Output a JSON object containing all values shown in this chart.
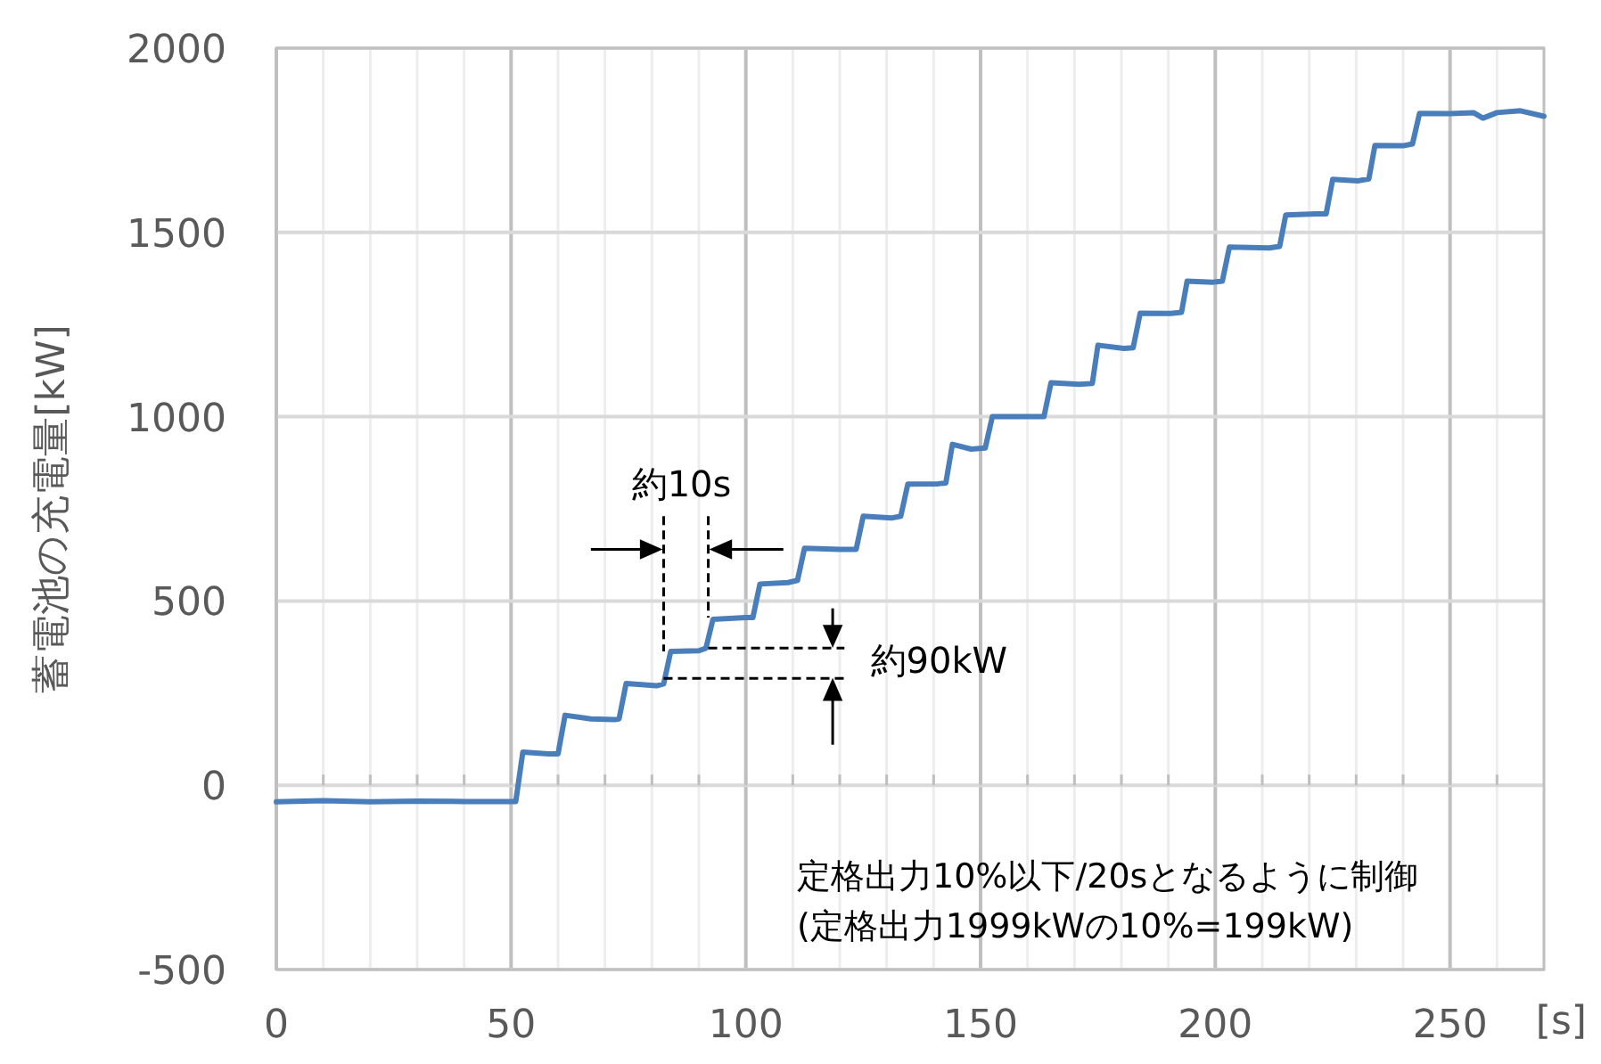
{
  "chart_data": {
    "type": "line",
    "xlabel": "[s]",
    "ylabel": "蓄電池の充電量[kW]",
    "xlim": [
      0,
      270
    ],
    "ylim": [
      -500,
      2000
    ],
    "xticks": [
      0,
      {
        "value": 10,
        "label": null
      },
      {
        "value": 20,
        "label": null
      },
      {
        "value": 30,
        "label": null
      },
      {
        "value": 40,
        "label": null
      },
      50,
      {
        "value": 60,
        "label": null
      },
      {
        "value": 70,
        "label": null
      },
      {
        "value": 80,
        "label": null
      },
      {
        "value": 90,
        "label": null
      },
      100,
      {
        "value": 110,
        "label": null
      },
      {
        "value": 120,
        "label": null
      },
      {
        "value": 130,
        "label": null
      },
      {
        "value": 140,
        "label": null
      },
      150,
      {
        "value": 160,
        "label": null
      },
      {
        "value": 170,
        "label": null
      },
      {
        "value": 180,
        "label": null
      },
      {
        "value": 190,
        "label": null
      },
      200,
      {
        "value": 210,
        "label": null
      },
      {
        "value": 220,
        "label": null
      },
      {
        "value": 230,
        "label": null
      },
      {
        "value": 240,
        "label": null
      },
      250,
      {
        "value": 260,
        "label": null
      }
    ],
    "yticks": [
      -500,
      0,
      500,
      1000,
      1500,
      2000
    ],
    "grid": true,
    "marker": "none",
    "line_style": "solid",
    "series": [
      {
        "color": "#4a7ebb",
        "x": [
          0,
          10,
          20,
          30,
          40,
          50,
          51,
          52.5,
          58,
          60,
          61.5,
          67,
          72,
          73,
          74.5,
          81,
          82.5,
          84,
          90,
          91.5,
          93,
          100,
          101.5,
          103,
          109,
          111,
          112.5,
          120,
          123.5,
          125,
          131,
          133,
          134.5,
          141,
          142.6,
          144,
          148,
          151,
          152.5,
          160,
          163.5,
          165,
          171,
          173.8,
          175,
          180.5,
          182.5,
          184,
          190.5,
          192.8,
          194,
          199.5,
          201.5,
          203,
          211.5,
          213.7,
          215,
          221.5,
          223.6,
          225,
          230.5,
          232.7,
          234,
          240,
          242,
          243.5,
          250,
          255,
          257,
          260,
          265,
          270
        ],
        "values": [
          -45,
          -42,
          -45,
          -43,
          -44,
          -44,
          -44,
          90,
          85,
          85,
          190,
          180,
          178,
          180,
          276,
          270,
          275,
          363,
          365,
          372,
          450,
          455,
          455,
          546,
          550,
          556,
          643,
          640,
          640,
          730,
          725,
          730,
          817,
          818,
          820,
          925,
          912,
          915,
          1000,
          1000,
          1000,
          1092,
          1088,
          1090,
          1194,
          1185,
          1187,
          1281,
          1280,
          1283,
          1368,
          1365,
          1368,
          1460,
          1458,
          1462,
          1547,
          1550,
          1550,
          1644,
          1640,
          1645,
          1736,
          1735,
          1740,
          1823,
          1822,
          1825,
          1810,
          1825,
          1830,
          1815
        ]
      }
    ],
    "annotations": [
      {
        "text": "約10s",
        "x": 82.5,
        "y": 363
      },
      {
        "text": "約90kW",
        "x": 92,
        "y": 372
      },
      "定格出力10%以下/20sとなるように制御",
      "(定格出力1999kWの10%=199kW)"
    ]
  }
}
